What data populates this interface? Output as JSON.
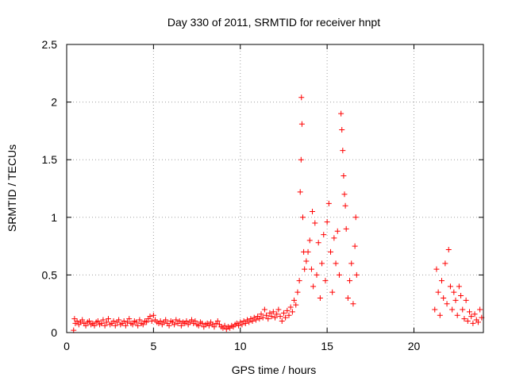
{
  "chart_data": {
    "type": "scatter",
    "title": "Day 330 of 2011, SRMTID for receiver hnpt",
    "xlabel": "GPS time / hours",
    "ylabel": "SRMTID / TECUs",
    "xlim": [
      0,
      24
    ],
    "ylim": [
      0,
      2.5
    ],
    "xticks": [
      0,
      5,
      10,
      15,
      20
    ],
    "yticks": [
      0,
      0.5,
      1,
      1.5,
      2,
      2.5
    ],
    "ytick_labels": [
      "0",
      "0.5",
      "1",
      "1.5",
      "2",
      "2.5"
    ],
    "grid": true,
    "marker": "plus",
    "color": "#ff0000",
    "points": [
      [
        0.4,
        0.02
      ],
      [
        0.45,
        0.12
      ],
      [
        0.5,
        0.08
      ],
      [
        0.6,
        0.1
      ],
      [
        0.7,
        0.07
      ],
      [
        0.8,
        0.09
      ],
      [
        0.9,
        0.11
      ],
      [
        1.0,
        0.08
      ],
      [
        1.1,
        0.06
      ],
      [
        1.2,
        0.09
      ],
      [
        1.3,
        0.1
      ],
      [
        1.4,
        0.07
      ],
      [
        1.5,
        0.08
      ],
      [
        1.6,
        0.06
      ],
      [
        1.7,
        0.09
      ],
      [
        1.8,
        0.1
      ],
      [
        1.9,
        0.07
      ],
      [
        2.0,
        0.08
      ],
      [
        2.1,
        0.11
      ],
      [
        2.2,
        0.06
      ],
      [
        2.3,
        0.09
      ],
      [
        2.4,
        0.12
      ],
      [
        2.5,
        0.07
      ],
      [
        2.6,
        0.08
      ],
      [
        2.7,
        0.1
      ],
      [
        2.8,
        0.06
      ],
      [
        2.9,
        0.09
      ],
      [
        3.0,
        0.11
      ],
      [
        3.1,
        0.07
      ],
      [
        3.2,
        0.08
      ],
      [
        3.3,
        0.1
      ],
      [
        3.4,
        0.06
      ],
      [
        3.5,
        0.09
      ],
      [
        3.6,
        0.12
      ],
      [
        3.7,
        0.08
      ],
      [
        3.8,
        0.07
      ],
      [
        3.9,
        0.1
      ],
      [
        4.0,
        0.09
      ],
      [
        4.1,
        0.06
      ],
      [
        4.2,
        0.11
      ],
      [
        4.3,
        0.08
      ],
      [
        4.4,
        0.07
      ],
      [
        4.5,
        0.1
      ],
      [
        4.6,
        0.09
      ],
      [
        4.7,
        0.12
      ],
      [
        4.8,
        0.14
      ],
      [
        4.9,
        0.1
      ],
      [
        5.0,
        0.15
      ],
      [
        5.1,
        0.11
      ],
      [
        5.2,
        0.09
      ],
      [
        5.3,
        0.08
      ],
      [
        5.4,
        0.1
      ],
      [
        5.5,
        0.07
      ],
      [
        5.6,
        0.09
      ],
      [
        5.7,
        0.11
      ],
      [
        5.8,
        0.08
      ],
      [
        5.9,
        0.06
      ],
      [
        6.0,
        0.1
      ],
      [
        6.1,
        0.09
      ],
      [
        6.2,
        0.07
      ],
      [
        6.3,
        0.11
      ],
      [
        6.4,
        0.08
      ],
      [
        6.5,
        0.1
      ],
      [
        6.6,
        0.06
      ],
      [
        6.7,
        0.09
      ],
      [
        6.8,
        0.08
      ],
      [
        6.9,
        0.1
      ],
      [
        7.0,
        0.07
      ],
      [
        7.1,
        0.09
      ],
      [
        7.2,
        0.11
      ],
      [
        7.3,
        0.08
      ],
      [
        7.4,
        0.1
      ],
      [
        7.5,
        0.07
      ],
      [
        7.6,
        0.06
      ],
      [
        7.7,
        0.09
      ],
      [
        7.8,
        0.08
      ],
      [
        7.9,
        0.05
      ],
      [
        8.0,
        0.07
      ],
      [
        8.1,
        0.08
      ],
      [
        8.2,
        0.06
      ],
      [
        8.3,
        0.09
      ],
      [
        8.4,
        0.07
      ],
      [
        8.5,
        0.05
      ],
      [
        8.6,
        0.08
      ],
      [
        8.7,
        0.1
      ],
      [
        8.8,
        0.07
      ],
      [
        8.9,
        0.05
      ],
      [
        9.0,
        0.04
      ],
      [
        9.1,
        0.06
      ],
      [
        9.2,
        0.03
      ],
      [
        9.3,
        0.05
      ],
      [
        9.4,
        0.04
      ],
      [
        9.5,
        0.06
      ],
      [
        9.6,
        0.05
      ],
      [
        9.7,
        0.07
      ],
      [
        9.8,
        0.08
      ],
      [
        9.9,
        0.06
      ],
      [
        10.0,
        0.09
      ],
      [
        10.1,
        0.07
      ],
      [
        10.2,
        0.1
      ],
      [
        10.3,
        0.08
      ],
      [
        10.4,
        0.11
      ],
      [
        10.5,
        0.09
      ],
      [
        10.6,
        0.12
      ],
      [
        10.7,
        0.1
      ],
      [
        10.8,
        0.13
      ],
      [
        10.9,
        0.11
      ],
      [
        11.0,
        0.14
      ],
      [
        11.1,
        0.12
      ],
      [
        11.2,
        0.16
      ],
      [
        11.3,
        0.13
      ],
      [
        11.4,
        0.2
      ],
      [
        11.5,
        0.15
      ],
      [
        11.6,
        0.12
      ],
      [
        11.7,
        0.17
      ],
      [
        11.8,
        0.14
      ],
      [
        11.9,
        0.18
      ],
      [
        12.0,
        0.13
      ],
      [
        12.1,
        0.16
      ],
      [
        12.2,
        0.2
      ],
      [
        12.3,
        0.14
      ],
      [
        12.4,
        0.1
      ],
      [
        12.5,
        0.17
      ],
      [
        12.6,
        0.13
      ],
      [
        12.7,
        0.19
      ],
      [
        12.8,
        0.15
      ],
      [
        12.9,
        0.22
      ],
      [
        13.0,
        0.18
      ],
      [
        13.1,
        0.28
      ],
      [
        13.2,
        0.24
      ],
      [
        13.3,
        0.35
      ],
      [
        13.4,
        0.45
      ],
      [
        13.45,
        1.22
      ],
      [
        13.5,
        1.5
      ],
      [
        13.52,
        2.04
      ],
      [
        13.55,
        1.81
      ],
      [
        13.6,
        1.0
      ],
      [
        13.65,
        0.7
      ],
      [
        13.7,
        0.55
      ],
      [
        13.8,
        0.62
      ],
      [
        13.9,
        0.7
      ],
      [
        14.0,
        0.8
      ],
      [
        14.1,
        0.55
      ],
      [
        14.15,
        1.05
      ],
      [
        14.2,
        0.4
      ],
      [
        14.3,
        0.95
      ],
      [
        14.4,
        0.5
      ],
      [
        14.5,
        0.78
      ],
      [
        14.6,
        0.3
      ],
      [
        14.7,
        0.6
      ],
      [
        14.8,
        0.85
      ],
      [
        14.9,
        0.45
      ],
      [
        15.0,
        0.96
      ],
      [
        15.1,
        1.12
      ],
      [
        15.2,
        0.7
      ],
      [
        15.3,
        0.35
      ],
      [
        15.4,
        0.82
      ],
      [
        15.5,
        0.6
      ],
      [
        15.6,
        0.88
      ],
      [
        15.7,
        0.5
      ],
      [
        15.8,
        1.9
      ],
      [
        15.85,
        1.76
      ],
      [
        15.9,
        1.58
      ],
      [
        15.95,
        1.36
      ],
      [
        16.0,
        1.2
      ],
      [
        16.05,
        1.1
      ],
      [
        16.1,
        0.9
      ],
      [
        16.2,
        0.3
      ],
      [
        16.3,
        0.45
      ],
      [
        16.4,
        0.6
      ],
      [
        16.5,
        0.25
      ],
      [
        16.6,
        0.75
      ],
      [
        16.65,
        1.0
      ],
      [
        16.7,
        0.5
      ],
      [
        21.2,
        0.2
      ],
      [
        21.3,
        0.55
      ],
      [
        21.4,
        0.35
      ],
      [
        21.5,
        0.15
      ],
      [
        21.6,
        0.45
      ],
      [
        21.7,
        0.3
      ],
      [
        21.8,
        0.6
      ],
      [
        21.9,
        0.25
      ],
      [
        22.0,
        0.72
      ],
      [
        22.1,
        0.4
      ],
      [
        22.2,
        0.2
      ],
      [
        22.3,
        0.35
      ],
      [
        22.4,
        0.28
      ],
      [
        22.5,
        0.15
      ],
      [
        22.6,
        0.4
      ],
      [
        22.7,
        0.32
      ],
      [
        22.8,
        0.2
      ],
      [
        22.9,
        0.12
      ],
      [
        23.0,
        0.28
      ],
      [
        23.1,
        0.1
      ],
      [
        23.2,
        0.18
      ],
      [
        23.3,
        0.14
      ],
      [
        23.4,
        0.08
      ],
      [
        23.5,
        0.16
      ],
      [
        23.6,
        0.11
      ],
      [
        23.7,
        0.09
      ],
      [
        23.8,
        0.2
      ],
      [
        23.9,
        0.13
      ]
    ]
  }
}
